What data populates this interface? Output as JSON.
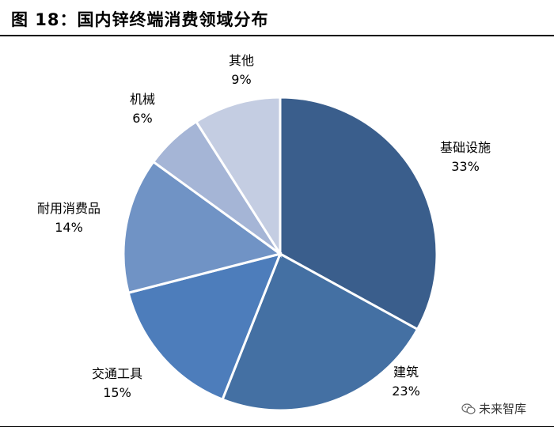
{
  "title": "图 18：国内锌终端消费领域分布",
  "watermark": {
    "text": "未来智库",
    "icon": "wechat-icon"
  },
  "chart_data": {
    "type": "pie",
    "title": "图 18：国内锌终端消费领域分布",
    "start_angle_deg": 0,
    "direction": "clockwise",
    "slices": [
      {
        "label": "基础设施",
        "value": 33,
        "display": "33%",
        "color": "#3a5e8c"
      },
      {
        "label": "建筑",
        "value": 23,
        "display": "23%",
        "color": "#4470a3"
      },
      {
        "label": "交通工具",
        "value": 15,
        "display": "15%",
        "color": "#4d7dbb"
      },
      {
        "label": "耐用消费品",
        "value": 14,
        "display": "14%",
        "color": "#7093c5"
      },
      {
        "label": "机械",
        "value": 6,
        "display": "6%",
        "color": "#a5b5d6"
      },
      {
        "label": "其他",
        "value": 9,
        "display": "9%",
        "color": "#c4cde2"
      }
    ]
  }
}
